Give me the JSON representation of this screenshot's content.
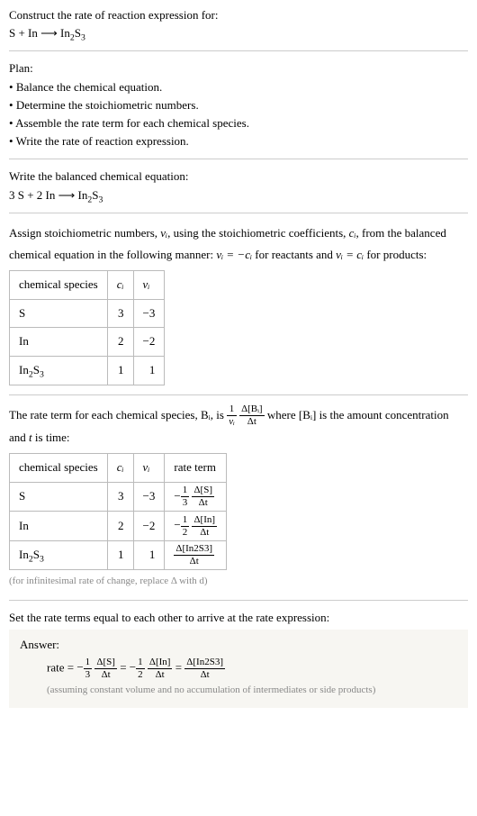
{
  "header": {
    "prompt": "Construct the rate of reaction expression for:",
    "reaction_unbalanced": "S + In ⟶ In₂S₃"
  },
  "plan": {
    "title": "Plan:",
    "items": [
      "Balance the chemical equation.",
      "Determine the stoichiometric numbers.",
      "Assemble the rate term for each chemical species.",
      "Write the rate of reaction expression."
    ]
  },
  "balanced": {
    "title": "Write the balanced chemical equation:",
    "reaction": "3 S + 2 In ⟶ In₂S₃"
  },
  "stoich": {
    "intro_a": "Assign stoichiometric numbers, ",
    "nu_i": "νᵢ",
    "intro_b": ", using the stoichiometric coefficients, ",
    "c_i": "cᵢ",
    "intro_c": ", from the balanced chemical equation in the following manner: ",
    "rel1": "νᵢ = −cᵢ",
    "intro_d": " for reactants and ",
    "rel2": "νᵢ = cᵢ",
    "intro_e": " for products:",
    "table": {
      "headers": [
        "chemical species",
        "cᵢ",
        "νᵢ"
      ],
      "rows": [
        {
          "species": "S",
          "c": "3",
          "nu": "−3"
        },
        {
          "species": "In",
          "c": "2",
          "nu": "−2"
        },
        {
          "species": "In₂S₃",
          "c": "1",
          "nu": "1"
        }
      ]
    }
  },
  "rateterms": {
    "intro_a": "The rate term for each chemical species, ",
    "Bi": "Bᵢ",
    "intro_b": ", is ",
    "frac1_num": "1",
    "frac1_den": "νᵢ",
    "frac2_num": "Δ[Bᵢ]",
    "frac2_den": "Δt",
    "intro_c": " where [Bᵢ] is the amount concentration and ",
    "t": "t",
    "intro_d": " is time:",
    "table": {
      "headers": [
        "chemical species",
        "cᵢ",
        "νᵢ",
        "rate term"
      ],
      "rows": [
        {
          "species": "S",
          "c": "3",
          "nu": "−3",
          "coeff": "−",
          "f1n": "1",
          "f1d": "3",
          "f2n": "Δ[S]",
          "f2d": "Δt"
        },
        {
          "species": "In",
          "c": "2",
          "nu": "−2",
          "coeff": "−",
          "f1n": "1",
          "f1d": "2",
          "f2n": "Δ[In]",
          "f2d": "Δt"
        },
        {
          "species": "In₂S₃",
          "c": "1",
          "nu": "1",
          "coeff": "",
          "f1n": "",
          "f1d": "",
          "f2n": "Δ[In2S3]",
          "f2d": "Δt"
        }
      ]
    },
    "footnote": "(for infinitesimal rate of change, replace Δ with d)"
  },
  "final": {
    "title": "Set the rate terms equal to each other to arrive at the rate expression:",
    "answer_label": "Answer:",
    "rate_label": "rate = ",
    "terms": [
      {
        "neg": "−",
        "f1n": "1",
        "f1d": "3",
        "f2n": "Δ[S]",
        "f2d": "Δt"
      },
      {
        "neg": "−",
        "f1n": "1",
        "f1d": "2",
        "f2n": "Δ[In]",
        "f2d": "Δt"
      },
      {
        "neg": "",
        "f1n": "",
        "f1d": "",
        "f2n": "Δ[In2S3]",
        "f2d": "Δt"
      }
    ],
    "eq": " = ",
    "assume": "(assuming constant volume and no accumulation of intermediates or side products)"
  }
}
